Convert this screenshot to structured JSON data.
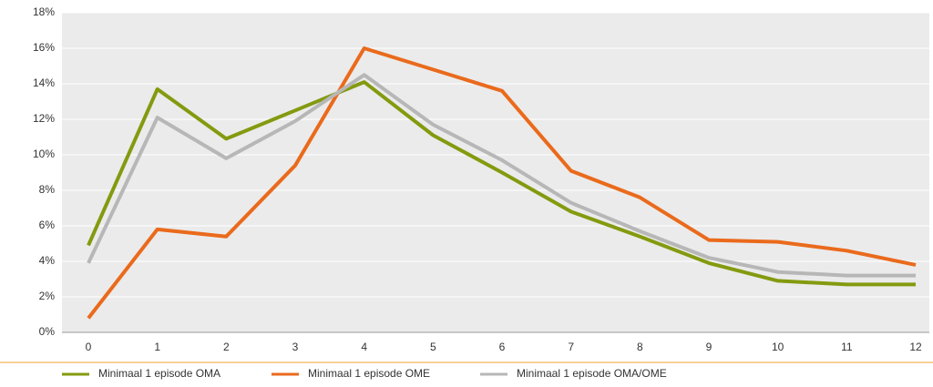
{
  "chart_data": {
    "type": "line",
    "categories": [
      "0",
      "1",
      "2",
      "3",
      "4",
      "5",
      "6",
      "7",
      "8",
      "9",
      "10",
      "11",
      "12"
    ],
    "series": [
      {
        "name": "Minimaal 1 episode OMA",
        "color": "#849a0f",
        "values": [
          4.9,
          13.7,
          10.9,
          12.5,
          14.1,
          11.1,
          9.0,
          6.8,
          5.4,
          3.9,
          2.9,
          2.7,
          2.7
        ]
      },
      {
        "name": "Minimaal 1 episode OME",
        "color": "#ea6a1c",
        "values": [
          0.8,
          5.8,
          5.4,
          9.4,
          16.0,
          14.8,
          13.6,
          9.1,
          7.6,
          5.2,
          5.1,
          4.6,
          3.8
        ]
      },
      {
        "name": "Minimaal 1 episode OMA/OME",
        "color": "#b7b7b7",
        "values": [
          3.9,
          12.1,
          9.8,
          11.9,
          14.5,
          11.7,
          9.7,
          7.3,
          5.7,
          4.2,
          3.4,
          3.2,
          3.2
        ]
      }
    ],
    "ylim": [
      0,
      18
    ],
    "yticks": [
      {
        "value": 0,
        "label": "0%"
      },
      {
        "value": 2,
        "label": "2%"
      },
      {
        "value": 4,
        "label": "4%"
      },
      {
        "value": 6,
        "label": "6%"
      },
      {
        "value": 8,
        "label": "8%"
      },
      {
        "value": 10,
        "label": "10%"
      },
      {
        "value": 12,
        "label": "12%"
      },
      {
        "value": 14,
        "label": "14%"
      },
      {
        "value": 16,
        "label": "16%"
      },
      {
        "value": 18,
        "label": "18%"
      }
    ],
    "grid": true
  }
}
